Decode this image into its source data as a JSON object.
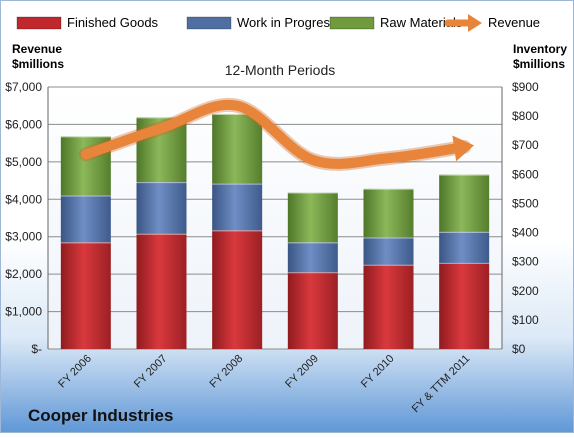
{
  "chart_data": {
    "type": "bar",
    "company": "Cooper Industries",
    "subtitle": "12-Month Periods",
    "left_axis_label": [
      "Revenue",
      "$millions"
    ],
    "right_axis_label": [
      "Inventory",
      "$millions"
    ],
    "categories": [
      "FY 2006",
      "FY 2007",
      "FY 2008",
      "FY 2009",
      "FY 2010",
      "FY & TTM 2011"
    ],
    "left_axis": {
      "min": 0,
      "max": 7000,
      "step": 1000,
      "tick_labels": [
        "$-",
        "$1,000",
        "$2,000",
        "$3,000",
        "$4,000",
        "$5,000",
        "$6,000",
        "$7,000"
      ]
    },
    "right_axis": {
      "min": 0,
      "max": 900,
      "step": 100,
      "tick_labels": [
        "$0",
        "$100",
        "$200",
        "$300",
        "$400",
        "$500",
        "$600",
        "$700",
        "$800",
        "$900"
      ]
    },
    "stacked": true,
    "series": [
      {
        "name": "Finished Goods",
        "color": "#c0282d",
        "axis": "left",
        "values": [
          2850,
          3080,
          3170,
          2050,
          2250,
          2300
        ]
      },
      {
        "name": "Work in Progress",
        "color": "#4f6fa3",
        "axis": "left",
        "values": [
          1250,
          1380,
          1250,
          800,
          730,
          830
        ]
      },
      {
        "name": "Raw Materials",
        "color": "#6f9a3d",
        "axis": "left",
        "values": [
          1580,
          1730,
          1860,
          1330,
          1300,
          1530
        ]
      },
      {
        "name": "Revenue",
        "type": "line",
        "color": "#e8853a",
        "axis": "left",
        "values": [
          5200,
          5900,
          6500,
          5050,
          5100,
          5400
        ]
      }
    ],
    "legend_position": "top",
    "grid": true
  }
}
